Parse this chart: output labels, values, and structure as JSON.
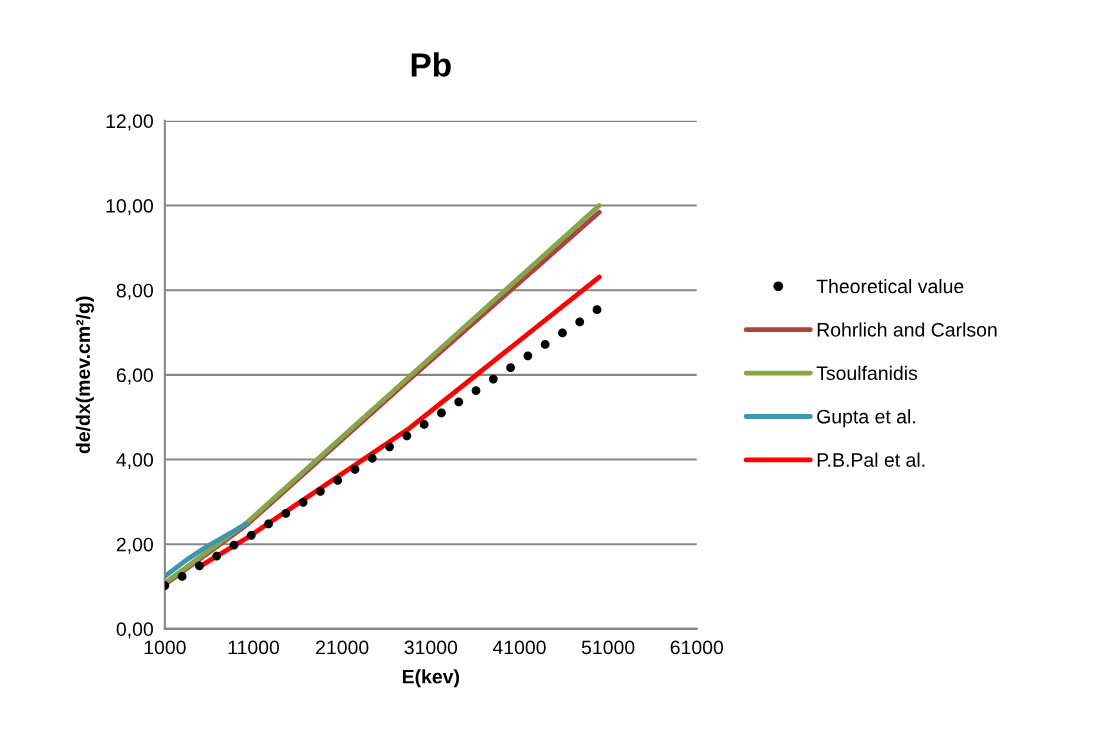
{
  "chart_data": {
    "type": "line",
    "title": "Pb",
    "xlabel": "E(kev)",
    "ylabel": "de/dx(mev.cm²/g)",
    "xlim": [
      1000,
      61000
    ],
    "xticks": [
      1000,
      11000,
      21000,
      31000,
      41000,
      51000,
      61000
    ],
    "ylim": [
      0,
      12
    ],
    "yticks": [
      {
        "value": 0,
        "label": "0,00"
      },
      {
        "value": 2,
        "label": "2,00"
      },
      {
        "value": 4,
        "label": "4,00"
      },
      {
        "value": 6,
        "label": "6,00"
      },
      {
        "value": 8,
        "label": "8,00"
      },
      {
        "value": 10,
        "label": "10,00"
      },
      {
        "value": 12,
        "label": "12,00"
      }
    ],
    "grid": "y",
    "legend": "right",
    "series": [
      {
        "name": "Theoretical value",
        "type": "scatter",
        "marker": "circle",
        "color": "#000000",
        "x": [
          1000,
          2950,
          4900,
          6850,
          8800,
          10750,
          12700,
          14650,
          16600,
          18550,
          20500,
          22450,
          24400,
          26350,
          28300,
          30250,
          32200,
          34150,
          36100,
          38050,
          40000,
          41950,
          43900,
          45850,
          47800,
          49750
        ],
        "values": [
          1.02,
          1.24,
          1.49,
          1.72,
          1.98,
          2.21,
          2.48,
          2.73,
          2.99,
          3.25,
          3.51,
          3.77,
          4.03,
          4.3,
          4.56,
          4.83,
          5.1,
          5.36,
          5.63,
          5.9,
          6.17,
          6.45,
          6.72,
          6.99,
          7.25,
          7.54
        ]
      },
      {
        "name": "Rohrlich and Carlson",
        "color": "#a9443f",
        "x": [
          1000,
          10200,
          28600,
          50000
        ],
        "values": [
          1.05,
          2.45,
          5.9,
          9.84
        ]
      },
      {
        "name": "Tsoulfanidis",
        "color": "#86a44a",
        "x": [
          1000,
          10200,
          28600,
          50000
        ],
        "values": [
          1.08,
          2.5,
          5.96,
          10.0
        ]
      },
      {
        "name": "Gupta et al.",
        "color": "#3c97ae",
        "x": [
          1000,
          3450,
          5700,
          10200
        ],
        "values": [
          1.24,
          1.63,
          1.94,
          2.48
        ]
      },
      {
        "name": "P.B.Pal et al.",
        "color": "#ff0000",
        "x": [
          5060,
          10200,
          28600,
          50000
        ],
        "values": [
          1.49,
          2.14,
          4.74,
          8.31
        ]
      }
    ]
  }
}
